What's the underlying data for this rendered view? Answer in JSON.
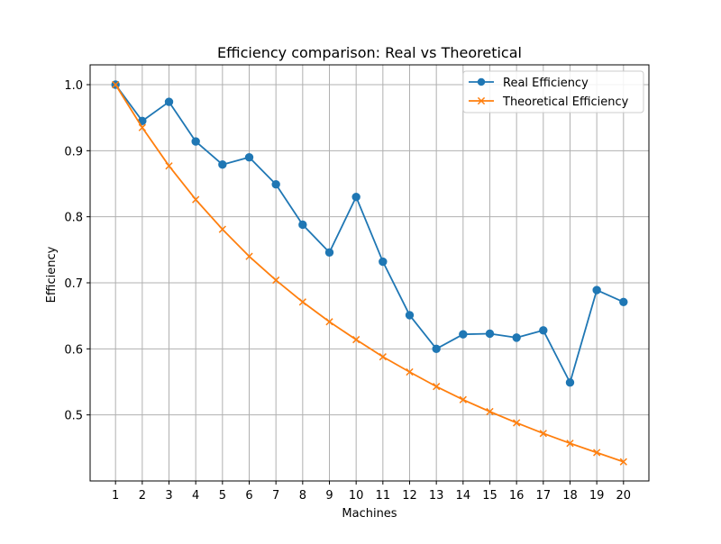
{
  "chart_data": {
    "type": "line",
    "title": "Efficiency comparison: Real vs Theoretical",
    "xlabel": "Machines",
    "ylabel": "Efficiency",
    "x": [
      1,
      2,
      3,
      4,
      5,
      6,
      7,
      8,
      9,
      10,
      11,
      12,
      13,
      14,
      15,
      16,
      17,
      18,
      19,
      20
    ],
    "x_ticks": [
      "1",
      "2",
      "3",
      "4",
      "5",
      "6",
      "7",
      "8",
      "9",
      "10",
      "11",
      "12",
      "13",
      "14",
      "15",
      "16",
      "17",
      "18",
      "19",
      "20"
    ],
    "y_ticks": [
      "0.5",
      "0.6",
      "0.7",
      "0.8",
      "0.9",
      "1.0"
    ],
    "y_tick_values": [
      0.5,
      0.6,
      0.7,
      0.8,
      0.9,
      1.0
    ],
    "xlim": [
      0.05,
      20.95
    ],
    "ylim": [
      0.4,
      1.03
    ],
    "grid": true,
    "legend_position": "top-right",
    "series": [
      {
        "name": "Real Efficiency",
        "color": "#1f77b4",
        "marker": "circle",
        "values": [
          1.0,
          0.945,
          0.974,
          0.914,
          0.879,
          0.89,
          0.849,
          0.788,
          0.746,
          0.83,
          0.732,
          0.651,
          0.6,
          0.622,
          0.623,
          0.617,
          0.628,
          0.549,
          0.689,
          0.671
        ]
      },
      {
        "name": "Theoretical Efficiency",
        "color": "#ff7f0e",
        "marker": "x",
        "values": [
          1.0,
          0.935,
          0.877,
          0.826,
          0.781,
          0.74,
          0.704,
          0.671,
          0.641,
          0.614,
          0.588,
          0.565,
          0.543,
          0.523,
          0.505,
          0.488,
          0.472,
          0.457,
          0.443,
          0.429
        ]
      }
    ]
  }
}
